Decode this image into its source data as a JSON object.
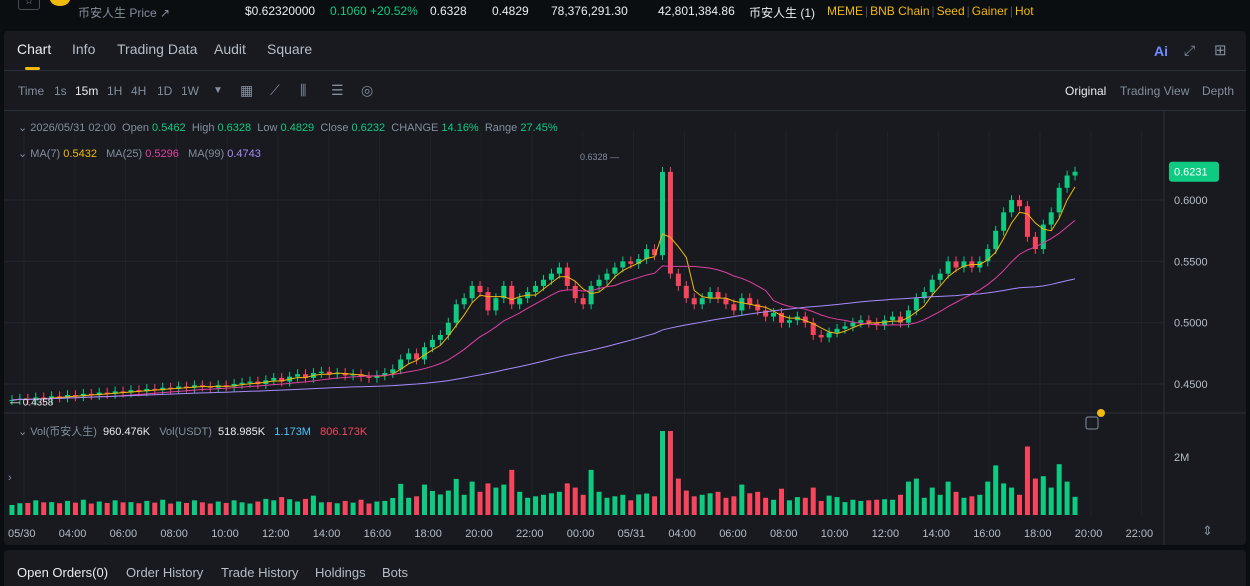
{
  "ticker": {
    "star": "☆",
    "name": "币安人生 Price ↗",
    "price": "$0.62320000",
    "change": "0.1060 +20.52%",
    "high": "0.6328",
    "low": "0.4829",
    "vol_token": "78,376,291.30",
    "vol_usdt": "42,801,384.86",
    "pair": "币安人生 (1)",
    "tags": [
      "MEME",
      "BNB Chain",
      "Seed",
      "Gainer",
      "Hot"
    ]
  },
  "tabs": [
    "Chart",
    "Info",
    "Trading Data",
    "Audit",
    "Square"
  ],
  "active_tab": "Chart",
  "top_icons": {
    "ai": "Ai",
    "expand": "expand-icon",
    "layout": "layout-grid-icon"
  },
  "toolbar": {
    "intervals": [
      "Time",
      "1s",
      "15m",
      "1H",
      "4H",
      "1D",
      "1W"
    ],
    "active_interval": "15m",
    "icons": [
      "chevron-down-icon",
      "calendar-icon",
      "indicator-icon",
      "candle-type-icon",
      "settings-icon",
      "target-icon"
    ],
    "views": [
      "Original",
      "Trading View",
      "Depth"
    ],
    "active_view": "Original"
  },
  "ohlc": {
    "date": "2026/05/31 02:00",
    "open_label": "Open",
    "open": "0.5462",
    "high_label": "High",
    "high": "0.6328",
    "low_label": "Low",
    "low": "0.4829",
    "close_label": "Close",
    "close": "0.6232",
    "change_label": "CHANGE",
    "change": "14.16%",
    "range_label": "Range",
    "range": "27.45%"
  },
  "ma": {
    "ma7_label": "MA(7)",
    "ma7": "0.5432",
    "ma25_label": "MA(25)",
    "ma25": "0.5296",
    "ma99_label": "MA(99)",
    "ma99": "0.4743"
  },
  "vol": {
    "label1": "Vol(币安人生)",
    "val1": "960.476K",
    "label2": "Vol(USDT)",
    "val2": "518.985K",
    "val3": "1.173M",
    "val4": "806.173K"
  },
  "chart_data": {
    "type": "candlestick",
    "y_ticks": [
      "0.6000",
      "0.5500",
      "0.5000",
      "0.4500"
    ],
    "y_range": [
      0.428,
      0.64
    ],
    "current_price": "0.6231",
    "low_marker": "0.4358",
    "high_marker": "0.6328",
    "vol_tick": "2M",
    "x_ticks": [
      "05/30",
      "04:00",
      "06:00",
      "08:00",
      "10:00",
      "12:00",
      "14:00",
      "16:00",
      "18:00",
      "20:00",
      "22:00",
      "00:00",
      "05/31",
      "04:00",
      "06:00",
      "08:00",
      "10:00",
      "12:00",
      "14:00",
      "16:00",
      "18:00",
      "20:00",
      "22:00"
    ],
    "closes": [
      0.437,
      0.438,
      0.437,
      0.439,
      0.438,
      0.44,
      0.439,
      0.441,
      0.44,
      0.442,
      0.441,
      0.443,
      0.442,
      0.444,
      0.443,
      0.445,
      0.444,
      0.446,
      0.445,
      0.447,
      0.446,
      0.448,
      0.447,
      0.449,
      0.448,
      0.447,
      0.449,
      0.448,
      0.45,
      0.451,
      0.452,
      0.45,
      0.453,
      0.455,
      0.452,
      0.456,
      0.458,
      0.455,
      0.459,
      0.46,
      0.458,
      0.459,
      0.457,
      0.458,
      0.456,
      0.455,
      0.457,
      0.459,
      0.462,
      0.47,
      0.475,
      0.47,
      0.48,
      0.486,
      0.49,
      0.5,
      0.515,
      0.52,
      0.53,
      0.525,
      0.51,
      0.52,
      0.53,
      0.515,
      0.52,
      0.525,
      0.53,
      0.535,
      0.54,
      0.545,
      0.53,
      0.52,
      0.515,
      0.53,
      0.535,
      0.54,
      0.545,
      0.55,
      0.548,
      0.552,
      0.56,
      0.555,
      0.623,
      0.54,
      0.53,
      0.52,
      0.515,
      0.52,
      0.525,
      0.52,
      0.515,
      0.51,
      0.52,
      0.515,
      0.51,
      0.505,
      0.508,
      0.5,
      0.502,
      0.505,
      0.5,
      0.49,
      0.488,
      0.492,
      0.495,
      0.497,
      0.5,
      0.502,
      0.5,
      0.498,
      0.502,
      0.505,
      0.5,
      0.51,
      0.52,
      0.525,
      0.535,
      0.54,
      0.55,
      0.545,
      0.55,
      0.545,
      0.55,
      0.56,
      0.575,
      0.59,
      0.6,
      0.595,
      0.57,
      0.56,
      0.58,
      0.59,
      0.61,
      0.62,
      0.6231
    ],
    "ma_series": [
      {
        "name": "MA(7)",
        "color": "#f0b90b"
      },
      {
        "name": "MA(25)",
        "color": "#e040a0"
      },
      {
        "name": "MA(99)",
        "color": "#a78bfa"
      }
    ],
    "up_color": "#0ecb81",
    "down_color": "#f6465d"
  },
  "bottom_tabs": [
    "Open Orders(0)",
    "Order History",
    "Trade History",
    "Holdings",
    "Bots"
  ],
  "active_bottom_tab": "Open Orders(0)"
}
